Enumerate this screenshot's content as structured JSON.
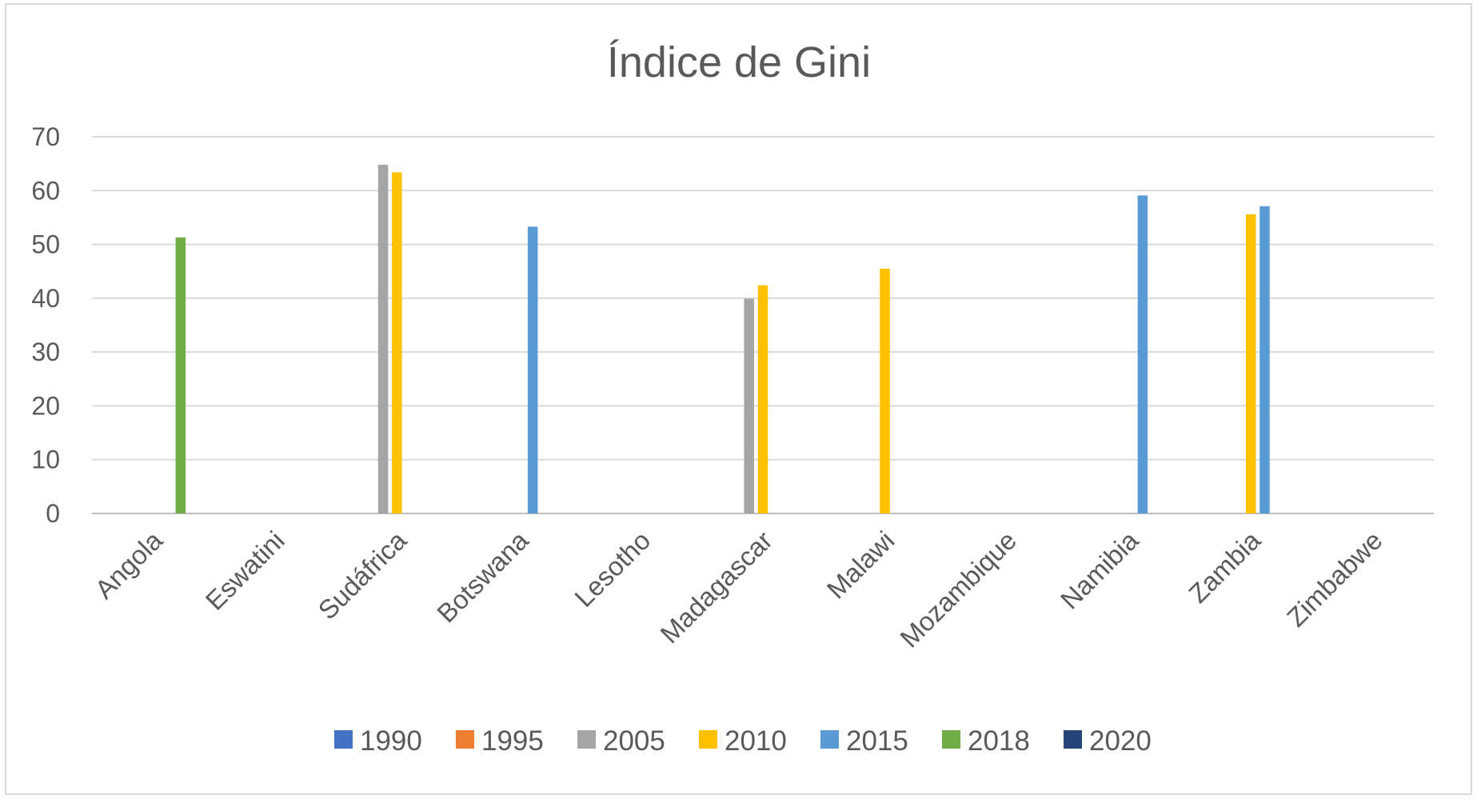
{
  "chart_data": {
    "type": "bar",
    "title": "Índice de Gini",
    "xlabel": "",
    "ylabel": "",
    "ylim": [
      0,
      70
    ],
    "yticks": [
      0,
      10,
      20,
      30,
      40,
      50,
      60,
      70
    ],
    "grid": true,
    "legend_position": "bottom",
    "categories": [
      "Angola",
      "Eswatini",
      "Sudáfrica",
      "Botswana",
      "Lesotho",
      "Madagascar",
      "Malawi",
      "Mozambique",
      "Namibia",
      "Zambia",
      "Zimbabwe"
    ],
    "series": [
      {
        "name": "1990",
        "color": "#4472c4",
        "values": [
          null,
          null,
          null,
          null,
          null,
          null,
          null,
          null,
          null,
          null,
          null
        ]
      },
      {
        "name": "1995",
        "color": "#ed7d31",
        "values": [
          null,
          null,
          null,
          null,
          null,
          null,
          null,
          null,
          null,
          null,
          null
        ]
      },
      {
        "name": "2005",
        "color": "#a5a5a5",
        "values": [
          null,
          null,
          64.8,
          null,
          null,
          39.9,
          null,
          null,
          null,
          null,
          null
        ]
      },
      {
        "name": "2010",
        "color": "#ffc000",
        "values": [
          null,
          null,
          63.4,
          null,
          null,
          42.4,
          45.5,
          null,
          null,
          55.6,
          null
        ]
      },
      {
        "name": "2015",
        "color": "#5b9bd5",
        "values": [
          null,
          null,
          null,
          53.3,
          null,
          null,
          null,
          null,
          59.1,
          57.1,
          null
        ]
      },
      {
        "name": "2018",
        "color": "#70ad47",
        "values": [
          51.3,
          null,
          null,
          null,
          null,
          null,
          null,
          null,
          null,
          null,
          null
        ]
      },
      {
        "name": "2020",
        "color": "#264478",
        "values": [
          null,
          null,
          null,
          null,
          null,
          null,
          null,
          null,
          null,
          null,
          null
        ]
      }
    ]
  }
}
